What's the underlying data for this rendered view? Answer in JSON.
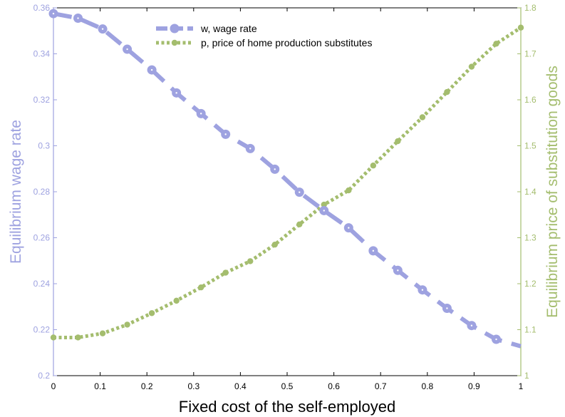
{
  "chart_data": {
    "type": "line",
    "title": "",
    "xlabel": "Fixed cost of the self-employed",
    "ylabel_left": "Equilibrium wage rate",
    "ylabel_right": "Equilibrium price of substitution goods",
    "xlim": [
      0,
      1
    ],
    "ylim_left": [
      0.2,
      0.36
    ],
    "ylim_right": [
      1.0,
      1.8
    ],
    "x_ticks": [
      "0",
      "0.1",
      "0.2",
      "0.3",
      "0.4",
      "0.5",
      "0.6",
      "0.7",
      "0.8",
      "0.9",
      "1"
    ],
    "y_left_ticks": [
      "0.2",
      "0.22",
      "0.24",
      "0.26",
      "0.28",
      "0.3",
      "0.32",
      "0.34",
      "0.36"
    ],
    "y_right_ticks": [
      "1",
      "1.1",
      "1.2",
      "1.3",
      "1.4",
      "1.5",
      "1.6",
      "1.7",
      "1.8"
    ],
    "grid": false,
    "legend_position": "top-center",
    "x": [
      0,
      0.0526,
      0.1053,
      0.1579,
      0.2105,
      0.2632,
      0.3158,
      0.3684,
      0.4211,
      0.4737,
      0.5263,
      0.5789,
      0.6316,
      0.6842,
      0.7368,
      0.7895,
      0.8421,
      0.8947,
      0.9474,
      1.0
    ],
    "series": [
      {
        "name": "w, wage rate",
        "axis": "left",
        "color": "#9ea2e0",
        "style": "dashed",
        "marker": "circle",
        "values": [
          0.3575,
          0.3555,
          0.3508,
          0.342,
          0.333,
          0.323,
          0.314,
          0.305,
          0.2988,
          0.2898,
          0.2798,
          0.2718,
          0.2643,
          0.2543,
          0.2458,
          0.2373,
          0.2293,
          0.2218,
          0.2158,
          0.2128
        ]
      },
      {
        "name": "p, price of home production substitutes",
        "axis": "right",
        "color": "#a4bd6e",
        "style": "dotted",
        "marker": "point",
        "values": [
          1.083,
          1.083,
          1.092,
          1.111,
          1.136,
          1.163,
          1.192,
          1.224,
          1.249,
          1.285,
          1.329,
          1.372,
          1.403,
          1.457,
          1.51,
          1.562,
          1.617,
          1.672,
          1.722,
          1.757
        ]
      }
    ]
  }
}
